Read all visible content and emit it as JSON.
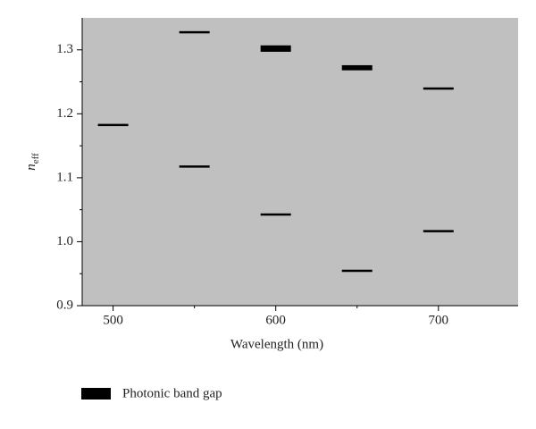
{
  "chart_data": {
    "type": "range-dash",
    "x_label": "Wavelength (nm)",
    "y_label": {
      "symbol": "n",
      "subscript": "eff"
    },
    "xlim": [
      481,
      749
    ],
    "xticks": [
      500,
      600,
      700
    ],
    "xminor": [
      550,
      650
    ],
    "ylim": [
      0.9,
      1.35
    ],
    "yticks": [
      0.9,
      {
        "value": 1,
        "label": "1.0"
      },
      1.1,
      1.2,
      1.3
    ],
    "yminor": [
      0.95,
      1.05,
      1.15,
      1.25
    ],
    "background": "#c0c0c0",
    "series": [
      {
        "name": "Photonic band gap",
        "color": "#000000",
        "x": [
          500,
          550,
          550,
          600,
          600,
          650,
          650,
          700,
          700
        ],
        "low": [
          1.181,
          1.326,
          1.116,
          1.297,
          1.041,
          1.268,
          0.953,
          1.238,
          1.015
        ],
        "high": [
          1.184,
          1.329,
          1.119,
          1.307,
          1.044,
          1.276,
          0.956,
          1.241,
          1.018
        ]
      }
    ]
  }
}
